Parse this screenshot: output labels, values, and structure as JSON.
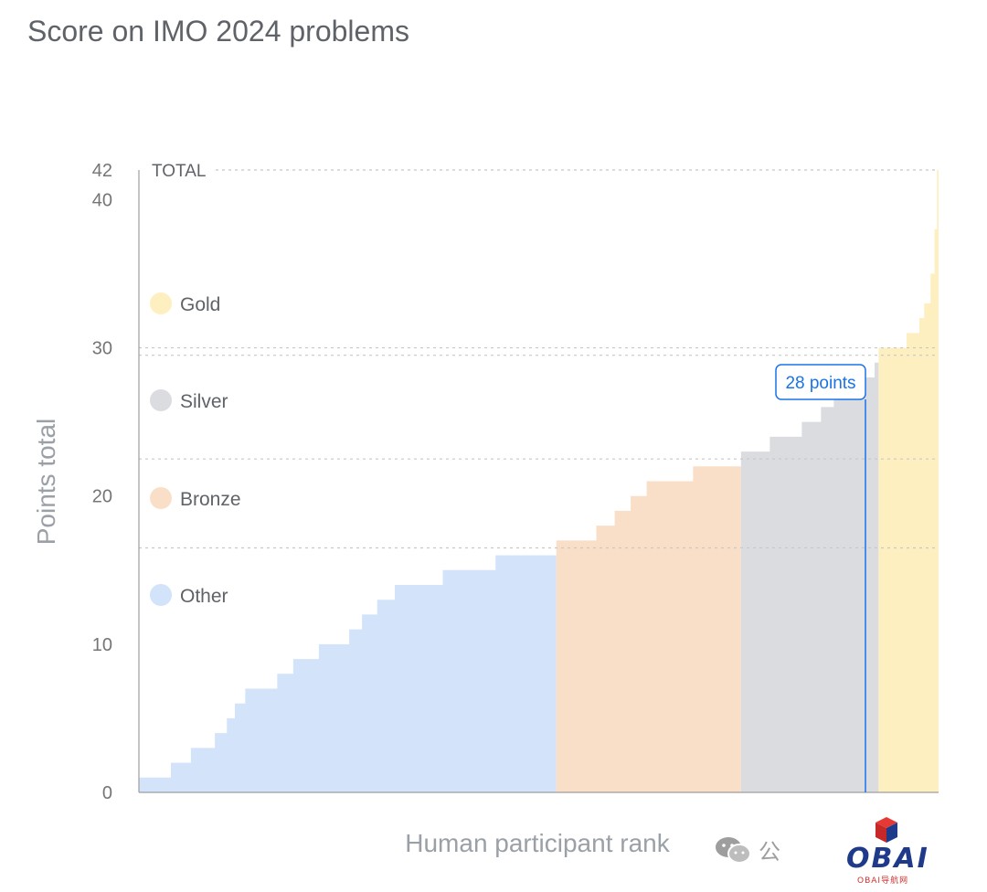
{
  "page": {
    "title": "Score on IMO 2024 problems"
  },
  "chart_data": {
    "type": "area",
    "title": "Score on IMO 2024 problems",
    "xlabel": "Human participant rank",
    "ylabel": "Points total",
    "ylim": [
      0,
      42
    ],
    "yticks": [
      0,
      10,
      20,
      30,
      40,
      42
    ],
    "total_label": "TOTAL",
    "total_value": 42,
    "grid": "dashed lines at medal thresholds and total",
    "legend_position": "left",
    "colors": {
      "Gold": "#fdefc0",
      "Silver": "#dadce0",
      "Bronze": "#fadfc8",
      "Other": "#d2e3fa",
      "callout": "#1a73e8"
    },
    "series": [
      {
        "name": "Other",
        "steps": [
          [
            0,
            1
          ],
          [
            0.04,
            2
          ],
          [
            0.065,
            3
          ],
          [
            0.095,
            4
          ],
          [
            0.11,
            5
          ],
          [
            0.12,
            6
          ],
          [
            0.133,
            7
          ],
          [
            0.173,
            8
          ],
          [
            0.193,
            9
          ],
          [
            0.225,
            10
          ],
          [
            0.263,
            11
          ],
          [
            0.279,
            12
          ],
          [
            0.298,
            13
          ],
          [
            0.32,
            14
          ],
          [
            0.38,
            15
          ],
          [
            0.446,
            16
          ],
          [
            0.522,
            16
          ]
        ]
      },
      {
        "name": "Bronze",
        "steps": [
          [
            0.522,
            17
          ],
          [
            0.572,
            18
          ],
          [
            0.595,
            19
          ],
          [
            0.615,
            20
          ],
          [
            0.635,
            21
          ],
          [
            0.693,
            22
          ],
          [
            0.753,
            22
          ]
        ]
      },
      {
        "name": "Silver",
        "steps": [
          [
            0.753,
            23
          ],
          [
            0.789,
            24
          ],
          [
            0.829,
            25
          ],
          [
            0.853,
            26
          ],
          [
            0.869,
            27
          ],
          [
            0.885,
            28
          ],
          [
            0.92,
            29
          ],
          [
            0.925,
            29
          ]
        ]
      },
      {
        "name": "Gold",
        "steps": [
          [
            0.925,
            30
          ],
          [
            0.96,
            31
          ],
          [
            0.976,
            32
          ],
          [
            0.982,
            33
          ],
          [
            0.99,
            35
          ],
          [
            0.995,
            38
          ],
          [
            0.998,
            42
          ],
          [
            1.0,
            42
          ]
        ]
      }
    ],
    "thresholds": [
      {
        "medal": "Gold",
        "value": 29.5
      },
      {
        "medal": "Silver",
        "value": 22.5
      },
      {
        "medal": "Bronze",
        "value": 16.5
      }
    ],
    "legend": [
      "Gold",
      "Silver",
      "Bronze",
      "Other"
    ],
    "annotation": {
      "text": "28 points",
      "value": 28,
      "x": 0.91
    }
  },
  "watermark": {
    "text": "公",
    "logo_text": "OBAI",
    "logo_sub": "OBAI导航网"
  }
}
